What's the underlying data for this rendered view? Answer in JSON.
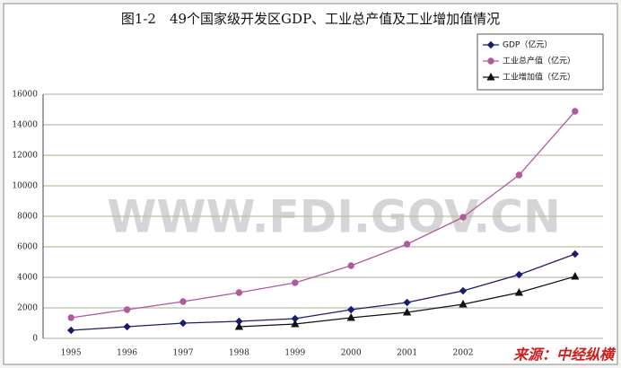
{
  "chart_data": {
    "type": "line",
    "title": "图1-2　49个国家级开发区GDP、工业总产值及工业增加值情况",
    "categories": [
      "1995",
      "1996",
      "1997",
      "1998",
      "1999",
      "2000",
      "2001",
      "2002",
      null,
      null
    ],
    "series": [
      {
        "name": "GDP（亿元）",
        "color": "#1c1c6e",
        "marker": "diamond",
        "values": [
          529,
          765,
          1000,
          1118,
          1294,
          1882,
          2353,
          3118,
          4176,
          5529
        ]
      },
      {
        "name": "工业总产值（亿元）",
        "color": "#b05a9c",
        "marker": "circle",
        "values": [
          1353,
          1882,
          2412,
          3000,
          3647,
          4765,
          6176,
          7941,
          10706,
          14882
        ]
      },
      {
        "name": "工业增加值（亿元）",
        "color": "#111111",
        "marker": "triangle",
        "values": [
          null,
          null,
          null,
          765,
          941,
          1353,
          1706,
          2235,
          3000,
          4059
        ]
      }
    ],
    "ylim": [
      0,
      16000
    ],
    "yticks": [
      0,
      2000,
      4000,
      6000,
      8000,
      10000,
      12000,
      14000,
      16000
    ],
    "grid": true,
    "legend": "top-right",
    "watermark": "WWW.FDI.GOV.CN",
    "source": "来源：中经纵横"
  }
}
